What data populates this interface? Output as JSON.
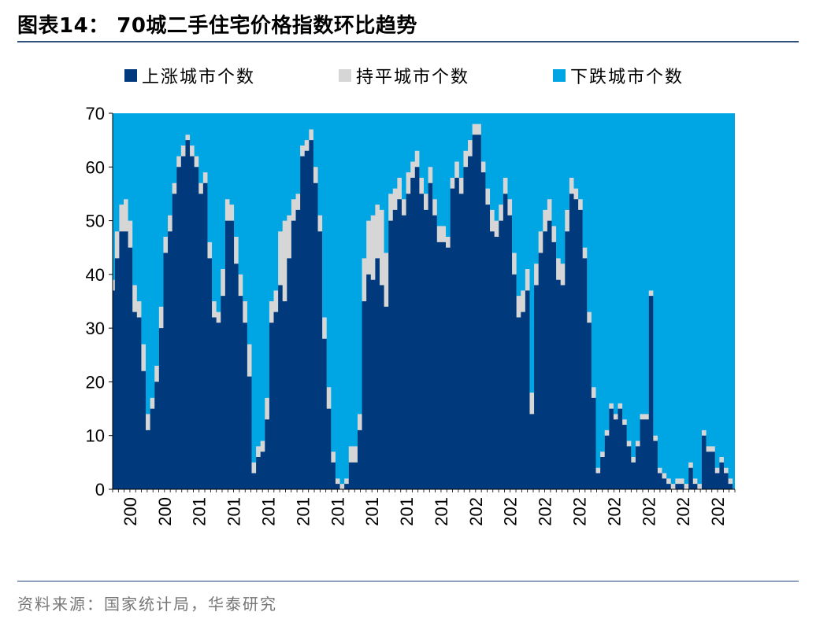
{
  "header": {
    "title": "图表14：  70城二手住宅价格指数环比趋势"
  },
  "legend": {
    "items": [
      {
        "label": "上涨城市个数",
        "color": "#003a7d"
      },
      {
        "label": "持平城市个数",
        "color": "#d6d6d6"
      },
      {
        "label": "下跌城市个数",
        "color": "#00a6e4"
      }
    ]
  },
  "footer": {
    "source": "资料来源：国家统计局，华泰研究"
  },
  "chart_data": {
    "type": "area",
    "stacked": true,
    "total": 70,
    "ylim": [
      0,
      70
    ],
    "yticks": [
      0,
      10,
      20,
      30,
      40,
      50,
      60,
      70
    ],
    "xtick_labels": [
      "200",
      "200",
      "201",
      "201",
      "201",
      "201",
      "201",
      "201",
      "201",
      "201",
      "202",
      "202",
      "202",
      "202",
      "202",
      "202",
      "202",
      "202"
    ],
    "series": [
      {
        "name": "上涨城市个数",
        "color": "#003a7d",
        "values": [
          37,
          43,
          48,
          48,
          45,
          33,
          32,
          22,
          11,
          15,
          20,
          30,
          44,
          48,
          55,
          60,
          62,
          65,
          62,
          60,
          55,
          57,
          43,
          32,
          31,
          36,
          50,
          50,
          42,
          36,
          31,
          21,
          3,
          6,
          7,
          13,
          31,
          33,
          38,
          35,
          43,
          50,
          52,
          62,
          63,
          65,
          57,
          48,
          28,
          15,
          5,
          1,
          0,
          1,
          5,
          5,
          11,
          35,
          40,
          39,
          43,
          38,
          34,
          50,
          52,
          54,
          51,
          55,
          58,
          60,
          55,
          52,
          57,
          51,
          46,
          46,
          45,
          56,
          58,
          55,
          60,
          62,
          66,
          66,
          59,
          53,
          48,
          47,
          50,
          55,
          51,
          40,
          32,
          33,
          37,
          14,
          38,
          44,
          48,
          50,
          46,
          39,
          38,
          48,
          55,
          54,
          52,
          43,
          31,
          17,
          3,
          6,
          10,
          15,
          13,
          15,
          12,
          8,
          5,
          8,
          13,
          13,
          36,
          9,
          3,
          2,
          1,
          0,
          1,
          1,
          0,
          4,
          1,
          0,
          10,
          7,
          7,
          3,
          5,
          3,
          1,
          0
        ]
      },
      {
        "name": "持平城市个数",
        "color": "#d6d6d6",
        "values": [
          2,
          5,
          5,
          6,
          5,
          5,
          3,
          5,
          3,
          2,
          3,
          4,
          3,
          3,
          2,
          2,
          2,
          1,
          2,
          2,
          2,
          2,
          3,
          3,
          2,
          5,
          4,
          3,
          5,
          4,
          4,
          6,
          2,
          2,
          2,
          4,
          4,
          4,
          10,
          15,
          8,
          4,
          3,
          2,
          2,
          2,
          3,
          3,
          4,
          4,
          2,
          1,
          1,
          1,
          3,
          3,
          3,
          8,
          10,
          12,
          10,
          14,
          10,
          5,
          4,
          4,
          3,
          4,
          3,
          3,
          3,
          3,
          3,
          3,
          3,
          3,
          2,
          2,
          3,
          3,
          3,
          3,
          2,
          2,
          2,
          3,
          4,
          3,
          3,
          3,
          3,
          4,
          4,
          4,
          4,
          4,
          4,
          4,
          4,
          4,
          3,
          4,
          4,
          4,
          3,
          2,
          2,
          2,
          2,
          2,
          1,
          1,
          1,
          1,
          1,
          1,
          1,
          1,
          1,
          1,
          1,
          1,
          1,
          1,
          1,
          1,
          1,
          1,
          1,
          1,
          1,
          1,
          1,
          1,
          1,
          1,
          1,
          1,
          1,
          1,
          1,
          0
        ]
      }
    ],
    "remainder_series": {
      "name": "下跌城市个数",
      "color": "#00a6e4"
    }
  }
}
